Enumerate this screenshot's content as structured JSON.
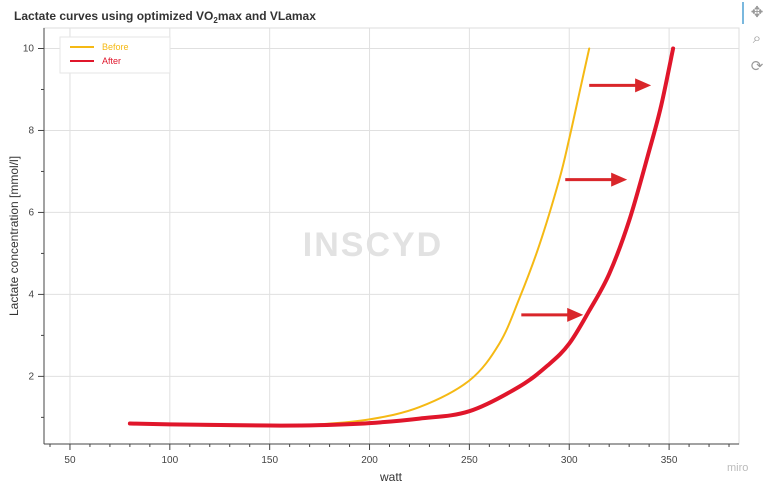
{
  "chart_data": {
    "type": "line",
    "title": "Lactate curves using optimized VO2max and VLamax",
    "title_parts": {
      "pre": "Lactate curves using optimized VO",
      "sub": "2",
      "post": "max and VLamax"
    },
    "xlabel": "watt",
    "ylabel": "Lactate concentration [mmol/l]",
    "xlim": [
      37,
      385
    ],
    "ylim": [
      0.35,
      10.5
    ],
    "xticks": [
      50,
      100,
      150,
      200,
      250,
      300,
      350
    ],
    "yticks": [
      2,
      4,
      6,
      8,
      10
    ],
    "grid": true,
    "legend_placement": "top-left",
    "series": [
      {
        "name": "Before",
        "color": "#f5b914",
        "points": [
          [
            80,
            0.85
          ],
          [
            100,
            0.82
          ],
          [
            125,
            0.79
          ],
          [
            150,
            0.79
          ],
          [
            175,
            0.83
          ],
          [
            200,
            0.95
          ],
          [
            225,
            1.25
          ],
          [
            250,
            1.9
          ],
          [
            265,
            2.8
          ],
          [
            275,
            3.9
          ],
          [
            285,
            5.2
          ],
          [
            295,
            6.8
          ],
          [
            300,
            7.8
          ],
          [
            305,
            8.9
          ],
          [
            310,
            10
          ]
        ]
      },
      {
        "name": "After",
        "color": "#e0162b",
        "points": [
          [
            80,
            0.85
          ],
          [
            100,
            0.83
          ],
          [
            150,
            0.8
          ],
          [
            175,
            0.81
          ],
          [
            200,
            0.86
          ],
          [
            225,
            0.97
          ],
          [
            250,
            1.15
          ],
          [
            275,
            1.75
          ],
          [
            290,
            2.3
          ],
          [
            300,
            2.8
          ],
          [
            310,
            3.6
          ],
          [
            320,
            4.5
          ],
          [
            330,
            5.8
          ],
          [
            340,
            7.5
          ],
          [
            346,
            8.6
          ],
          [
            352,
            10
          ]
        ]
      }
    ],
    "annotations": {
      "arrows_color": "#d9262a",
      "arrows": [
        {
          "from": [
            276,
            3.5
          ],
          "to": [
            307,
            3.5
          ]
        },
        {
          "from": [
            298,
            6.8
          ],
          "to": [
            329,
            6.8
          ]
        },
        {
          "from": [
            310,
            9.1
          ],
          "to": [
            341,
            9.1
          ]
        }
      ]
    },
    "watermark": "INSCYD"
  },
  "toolbar": {
    "icons": [
      "pan-icon",
      "box-zoom-icon",
      "reset-icon"
    ]
  },
  "branding": {
    "miro": "miro"
  }
}
